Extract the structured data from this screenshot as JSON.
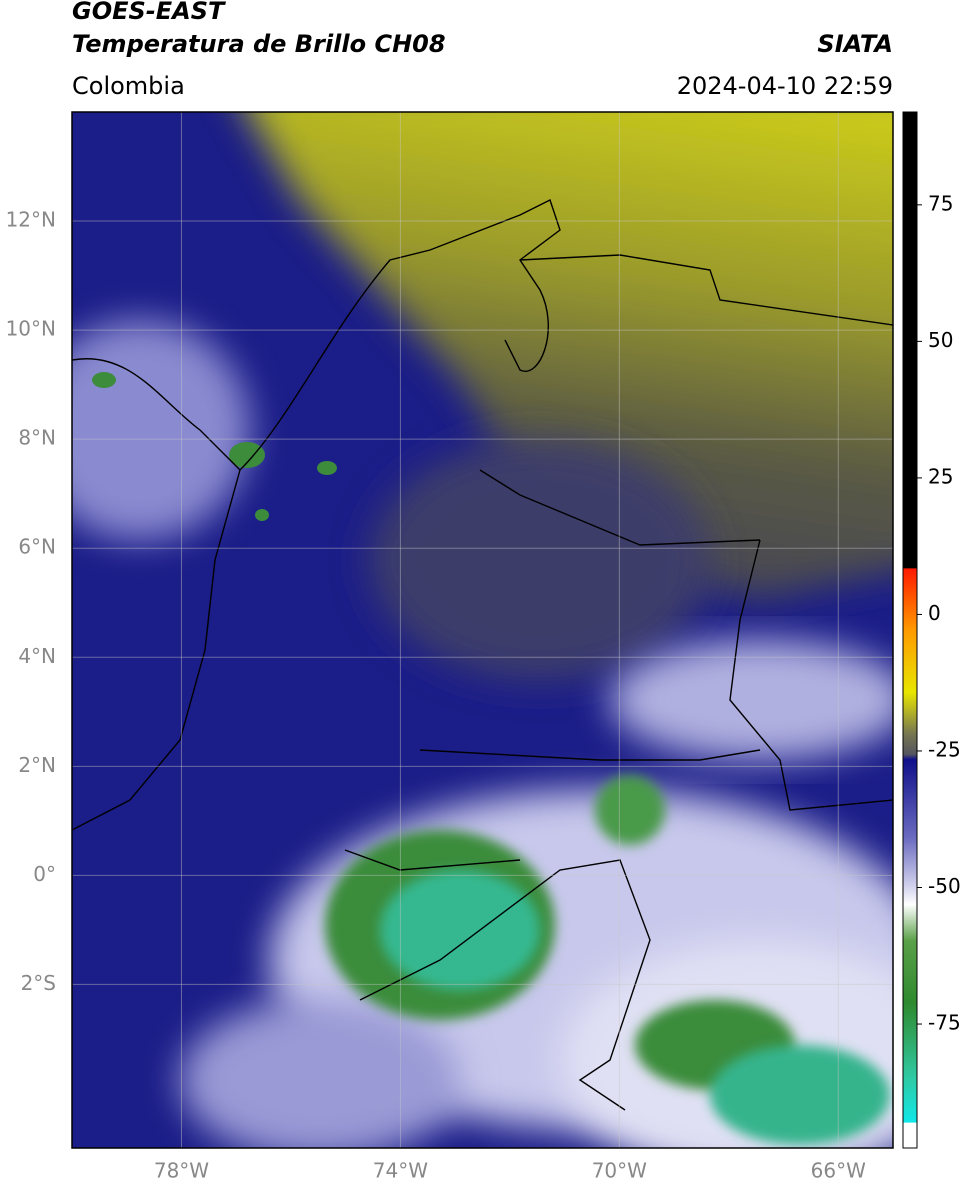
{
  "header": {
    "title": "GOES-EAST",
    "subtitle": "Temperatura de Brillo CH08",
    "source": "SIATA",
    "region": "Colombia",
    "datetime": "2024-04-10 22:59"
  },
  "map": {
    "lon_range": [
      -80,
      -65
    ],
    "lat_range": [
      -5,
      14
    ],
    "lat_ticks": [
      {
        "value": 12,
        "label": "12°N"
      },
      {
        "value": 10,
        "label": "10°N"
      },
      {
        "value": 8,
        "label": "8°N"
      },
      {
        "value": 6,
        "label": "6°N"
      },
      {
        "value": 4,
        "label": "4°N"
      },
      {
        "value": 2,
        "label": "2°N"
      },
      {
        "value": 0,
        "label": "0°"
      },
      {
        "value": -2,
        "label": "2°S"
      }
    ],
    "lon_ticks": [
      {
        "value": -78,
        "label": "78°W"
      },
      {
        "value": -74,
        "label": "74°W"
      },
      {
        "value": -70,
        "label": "70°W"
      },
      {
        "value": -66,
        "label": "66°W"
      }
    ]
  },
  "colorbar": {
    "range": [
      -97.7,
      92
    ],
    "ticks": [
      75,
      50,
      25,
      0,
      -25,
      -50,
      -75
    ]
  }
}
